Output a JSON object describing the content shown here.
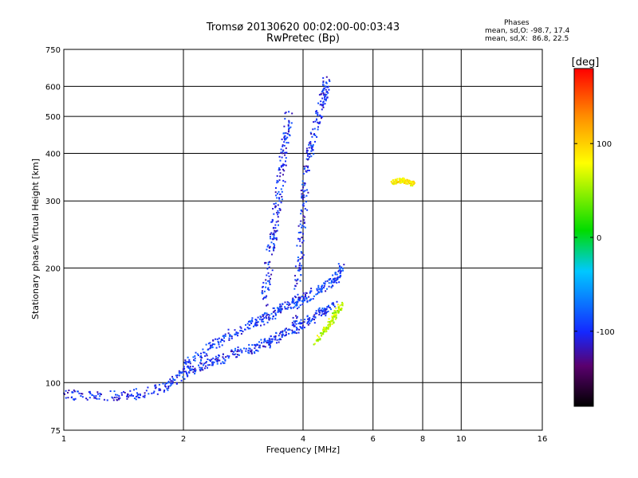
{
  "header": {
    "title_line1": "Tromsø 20130620 00:02:00-00:03:43",
    "title_line2": "RwPretec (Bp)",
    "phase_title": "Phases",
    "phase_o": "mean, sd,O: -98.7, 17.4",
    "phase_x": "mean, sd,X:  86.8, 22.5"
  },
  "colorbar": {
    "label": "[deg]",
    "ticks": [
      "100",
      "0",
      "-100"
    ],
    "tick_values": [
      100,
      0,
      -100
    ],
    "range": [
      -180,
      180
    ]
  },
  "chart_data": {
    "type": "scatter",
    "xlabel": "Frequency [MHz]",
    "ylabel": "Stationary phase Virtual Height [km]",
    "xscale": "log",
    "yscale": "log",
    "xlim": [
      1,
      16
    ],
    "ylim": [
      75,
      750
    ],
    "xticks": [
      1,
      2,
      4,
      6,
      8,
      10,
      16
    ],
    "xtick_labels": [
      "1",
      "2",
      "4",
      "6",
      "8",
      "10",
      "16"
    ],
    "yticks": [
      75,
      100,
      200,
      300,
      400,
      500,
      600,
      750
    ],
    "ytick_labels": [
      "75",
      "100",
      "200",
      "300",
      "400",
      "500",
      "600",
      "750"
    ],
    "grid": true,
    "traces": [
      {
        "x": [
          1.0,
          1.2,
          1.5,
          1.8,
          2.0,
          2.3,
          2.6,
          3.0,
          3.3,
          3.6,
          4.0,
          4.4,
          4.8
        ],
        "y": [
          93,
          92,
          93,
          97,
          106,
          112,
          118,
          123,
          128,
          135,
          142,
          152,
          160
        ],
        "phase": -100,
        "spread": 0.06
      },
      {
        "x": [
          2.0,
          2.3,
          2.6,
          3.0,
          3.3,
          3.6,
          4.0,
          4.4,
          4.8,
          5.0
        ],
        "y": [
          110,
          122,
          133,
          143,
          150,
          158,
          165,
          175,
          185,
          200
        ],
        "phase": -95,
        "spread": 0.06
      },
      {
        "x": [
          3.2,
          3.3,
          3.4,
          3.5,
          3.6,
          3.7
        ],
        "y": [
          160,
          210,
          260,
          330,
          420,
          500
        ],
        "phase": -100,
        "spread": 0.08
      },
      {
        "x": [
          3.8,
          3.9,
          4.0,
          4.1,
          4.3,
          4.5,
          4.6
        ],
        "y": [
          140,
          200,
          280,
          380,
          470,
          560,
          620
        ],
        "phase": -100,
        "spread": 0.07
      },
      {
        "x": [
          4.3,
          4.6,
          4.8,
          5.0
        ],
        "y": [
          128,
          140,
          150,
          160
        ],
        "phase": 60,
        "spread": 0.04
      },
      {
        "x": [
          6.7,
          7.0,
          7.3,
          7.6
        ],
        "y": [
          335,
          340,
          338,
          332
        ],
        "phase": 90,
        "spread": 0.03
      }
    ]
  }
}
